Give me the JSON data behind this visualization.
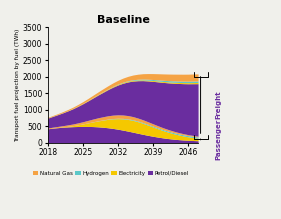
{
  "title": "Baseline",
  "ylabel": "Transport fuel projection by fuel (TWh)",
  "years": [
    2018,
    2019,
    2020,
    2021,
    2022,
    2023,
    2024,
    2025,
    2026,
    2027,
    2028,
    2029,
    2030,
    2031,
    2032,
    2033,
    2034,
    2035,
    2036,
    2037,
    2038,
    2039,
    2040,
    2041,
    2042,
    2043,
    2044,
    2045,
    2046,
    2047,
    2048
  ],
  "passenger": {
    "PetrolDiesel": [
      420,
      440,
      455,
      468,
      478,
      485,
      490,
      492,
      492,
      488,
      480,
      468,
      452,
      432,
      408,
      380,
      350,
      318,
      285,
      253,
      222,
      194,
      168,
      145,
      125,
      108,
      94,
      82,
      72,
      65,
      58
    ],
    "Electricity": [
      0,
      2,
      5,
      10,
      18,
      30,
      50,
      75,
      105,
      140,
      178,
      215,
      255,
      290,
      320,
      342,
      355,
      358,
      350,
      334,
      310,
      282,
      252,
      222,
      194,
      168,
      145,
      124,
      106,
      90,
      76
    ],
    "Hydrogen": [
      0,
      0,
      0,
      0,
      0,
      1,
      1,
      2,
      3,
      4,
      5,
      6,
      8,
      10,
      12,
      14,
      16,
      18,
      20,
      22,
      24,
      26,
      28,
      30,
      32,
      33,
      34,
      35,
      36,
      37,
      38
    ],
    "NaturalGas": [
      25,
      28,
      32,
      37,
      43,
      50,
      58,
      66,
      75,
      83,
      90,
      96,
      100,
      103,
      104,
      103,
      100,
      96,
      90,
      84,
      77,
      70,
      63,
      56,
      50,
      44,
      39,
      34,
      30,
      27,
      24
    ]
  },
  "freight": {
    "PetrolDiesel": [
      300,
      328,
      358,
      390,
      425,
      462,
      502,
      545,
      590,
      638,
      688,
      740,
      793,
      848,
      905,
      963,
      1020,
      1077,
      1133,
      1187,
      1238,
      1286,
      1332,
      1374,
      1413,
      1450,
      1483,
      1514,
      1542,
      1568,
      1592
    ],
    "Electricity": [
      5,
      6,
      7,
      8,
      9,
      10,
      11,
      12,
      13,
      14,
      15,
      16,
      17,
      18,
      19,
      20,
      21,
      22,
      23,
      24,
      25,
      26,
      27,
      28,
      29,
      30,
      31,
      32,
      33,
      34,
      35
    ],
    "Hydrogen": [
      0,
      0,
      0,
      0,
      0,
      0,
      1,
      1,
      2,
      3,
      4,
      5,
      6,
      8,
      10,
      12,
      15,
      18,
      21,
      24,
      27,
      30,
      33,
      36,
      38,
      40,
      42,
      43,
      44,
      45,
      46
    ],
    "NaturalGas": [
      18,
      21,
      24,
      28,
      33,
      38,
      44,
      51,
      58,
      66,
      75,
      84,
      93,
      103,
      113,
      123,
      133,
      143,
      153,
      162,
      171,
      179,
      186,
      193,
      199,
      204,
      208,
      211,
      213,
      215,
      216
    ]
  },
  "colors": {
    "PetrolDiesel": "#6a2d9f",
    "Electricity": "#f5c800",
    "Hydrogen": "#5bc8c8",
    "NaturalGas": "#f5a344"
  },
  "ylim": [
    0,
    3500
  ],
  "yticks": [
    0,
    500,
    1000,
    1500,
    2000,
    2500,
    3000,
    3500
  ],
  "xticks": [
    2018,
    2025,
    2032,
    2039,
    2046
  ],
  "background_color": "#f0f0eb",
  "freight_label": "Freight",
  "passenger_label": "Passenger",
  "legend_labels": [
    "Natural Gas",
    "Hydrogen",
    "Electricity",
    "Petrol/Diesel"
  ],
  "legend_colors": [
    "#f5a344",
    "#5bc8c8",
    "#f5c800",
    "#6a2d9f"
  ]
}
